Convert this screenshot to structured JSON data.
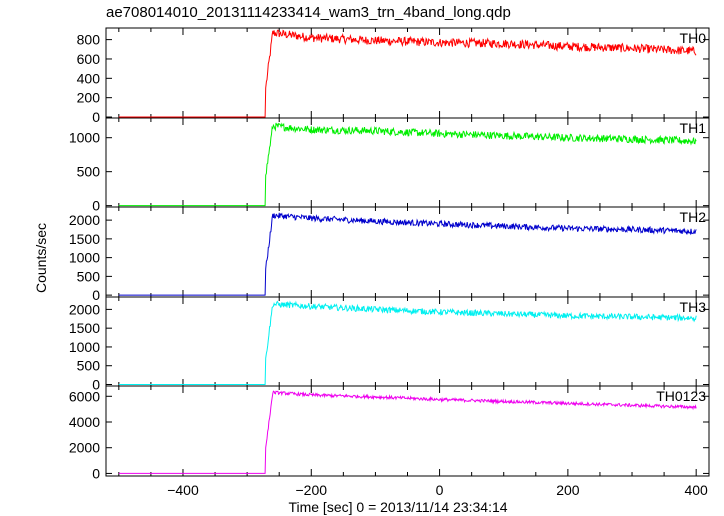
{
  "title": "ae708014010_20131114233414_wam3_trn_4band_long.qdp",
  "xlabel": "Time [sec] 0 = 2013/11/14 23:34:14",
  "ylabel": "Counts/sec",
  "chart_data": {
    "type": "line",
    "title": "ae708014010_20131114233414_wam3_trn_4band_long.qdp",
    "xlabel": "Time [sec] 0 = 2013/11/14 23:34:14",
    "ylabel": "Counts/sec",
    "xlim": [
      -520,
      420
    ],
    "x_ticks": [
      -400,
      -200,
      0,
      200,
      400
    ],
    "grid": false,
    "legend": "panel labels at top-right of each panel",
    "series": [
      {
        "name": "TH0",
        "color": "#ff0000",
        "ylim": [
          -10,
          920
        ],
        "y_ticks": [
          0,
          200,
          400,
          600,
          800
        ],
        "x": [
          -500,
          -272,
          -271,
          -260,
          -200,
          -100,
          0,
          100,
          200,
          300,
          400
        ],
        "values": [
          0,
          0,
          300,
          870,
          820,
          790,
          770,
          760,
          730,
          710,
          680
        ],
        "noise": 45
      },
      {
        "name": "TH1",
        "color": "#00ee00",
        "ylim": [
          -20,
          1290
        ],
        "y_ticks": [
          0,
          500,
          1000
        ],
        "x": [
          -500,
          -272,
          -271,
          -260,
          -200,
          -100,
          0,
          100,
          200,
          300,
          400
        ],
        "values": [
          0,
          0,
          450,
          1170,
          1120,
          1100,
          1060,
          1030,
          1000,
          980,
          950
        ],
        "noise": 55
      },
      {
        "name": "TH2",
        "color": "#0000cc",
        "ylim": [
          -50,
          2350
        ],
        "y_ticks": [
          0,
          500,
          1000,
          1500,
          2000
        ],
        "x": [
          -500,
          -272,
          -271,
          -260,
          -200,
          -100,
          0,
          100,
          200,
          300,
          400
        ],
        "values": [
          0,
          0,
          700,
          2130,
          2050,
          1970,
          1900,
          1840,
          1780,
          1750,
          1700
        ],
        "noise": 80
      },
      {
        "name": "TH3",
        "color": "#00f0f0",
        "ylim": [
          -40,
          2330
        ],
        "y_ticks": [
          0,
          500,
          1000,
          1500,
          2000
        ],
        "x": [
          -500,
          -272,
          -271,
          -260,
          -200,
          -100,
          0,
          100,
          200,
          300,
          400
        ],
        "values": [
          0,
          0,
          700,
          2140,
          2080,
          2000,
          1930,
          1880,
          1830,
          1800,
          1770
        ],
        "noise": 80
      },
      {
        "name": "TH0123",
        "color": "#ee00ee",
        "ylim": [
          -200,
          6800
        ],
        "y_ticks": [
          0,
          2000,
          4000,
          6000
        ],
        "x": [
          -500,
          -272,
          -271,
          -260,
          -200,
          -100,
          0,
          100,
          200,
          300,
          400
        ],
        "values": [
          0,
          0,
          2000,
          6300,
          6100,
          5950,
          5750,
          5600,
          5450,
          5300,
          5150
        ],
        "noise": 120
      }
    ]
  }
}
